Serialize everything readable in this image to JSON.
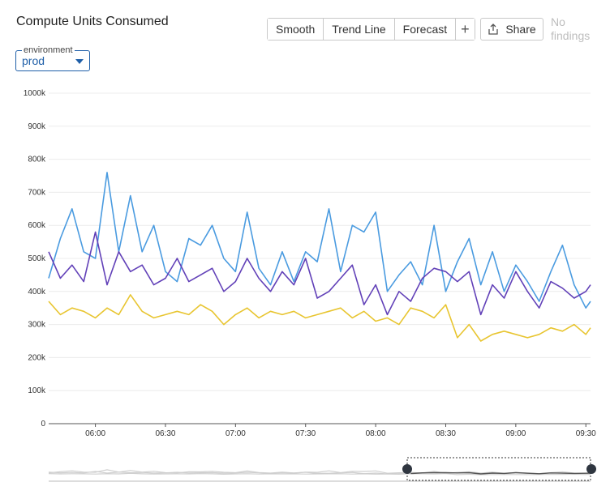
{
  "header": {
    "title": "Compute Units Consumed",
    "environment_label": "environment",
    "environment_value": "prod",
    "buttons": [
      "Smooth",
      "Trend Line",
      "Forecast"
    ],
    "share_label": "Share",
    "findings_label": "No findings"
  },
  "chart_data": {
    "type": "line",
    "title": "Compute Units Consumed",
    "ylim": [
      0,
      1000000
    ],
    "y_ticks": [
      0,
      100000,
      200000,
      300000,
      400000,
      500000,
      600000,
      700000,
      800000,
      900000,
      1000000
    ],
    "y_tick_labels": [
      "0",
      "100k",
      "200k",
      "300k",
      "400k",
      "500k",
      "600k",
      "700k",
      "800k",
      "900k",
      "1000k"
    ],
    "x_tick_labels": [
      "06:00",
      "06:30",
      "07:00",
      "07:30",
      "08:00",
      "08:30",
      "09:00",
      "09:30"
    ],
    "x": [
      "05:40",
      "05:45",
      "05:50",
      "05:55",
      "06:00",
      "06:05",
      "06:10",
      "06:15",
      "06:20",
      "06:25",
      "06:30",
      "06:35",
      "06:40",
      "06:45",
      "06:50",
      "06:55",
      "07:00",
      "07:05",
      "07:10",
      "07:15",
      "07:20",
      "07:25",
      "07:30",
      "07:35",
      "07:40",
      "07:45",
      "07:50",
      "07:55",
      "08:00",
      "08:05",
      "08:10",
      "08:15",
      "08:20",
      "08:25",
      "08:30",
      "08:35",
      "08:40",
      "08:45",
      "08:50",
      "08:55",
      "09:00",
      "09:05",
      "09:10",
      "09:15",
      "09:20",
      "09:25",
      "09:30",
      "09:32"
    ],
    "grid": true,
    "legend": "none",
    "series": [
      {
        "color": "#4a9be0",
        "values": [
          440000,
          560000,
          650000,
          520000,
          500000,
          760000,
          520000,
          690000,
          520000,
          600000,
          460000,
          430000,
          560000,
          540000,
          600000,
          500000,
          460000,
          640000,
          470000,
          420000,
          520000,
          430000,
          520000,
          490000,
          650000,
          460000,
          600000,
          580000,
          640000,
          400000,
          450000,
          490000,
          420000,
          600000,
          400000,
          490000,
          560000,
          420000,
          520000,
          400000,
          480000,
          430000,
          370000,
          460000,
          540000,
          420000,
          350000,
          370000
        ]
      },
      {
        "color": "#6241b8",
        "values": [
          520000,
          440000,
          480000,
          430000,
          580000,
          420000,
          520000,
          460000,
          480000,
          420000,
          440000,
          500000,
          430000,
          450000,
          470000,
          400000,
          430000,
          500000,
          440000,
          400000,
          460000,
          420000,
          500000,
          380000,
          400000,
          440000,
          480000,
          360000,
          420000,
          330000,
          400000,
          370000,
          440000,
          470000,
          460000,
          430000,
          460000,
          330000,
          420000,
          380000,
          460000,
          400000,
          350000,
          430000,
          410000,
          380000,
          400000,
          420000
        ]
      },
      {
        "color": "#e8c530",
        "values": [
          370000,
          330000,
          350000,
          340000,
          320000,
          350000,
          330000,
          390000,
          340000,
          320000,
          330000,
          340000,
          330000,
          360000,
          340000,
          300000,
          330000,
          350000,
          320000,
          340000,
          330000,
          340000,
          320000,
          330000,
          340000,
          350000,
          320000,
          340000,
          310000,
          320000,
          300000,
          350000,
          340000,
          320000,
          360000,
          260000,
          300000,
          250000,
          270000,
          280000,
          270000,
          260000,
          270000,
          290000,
          280000,
          300000,
          270000,
          290000
        ]
      }
    ]
  }
}
